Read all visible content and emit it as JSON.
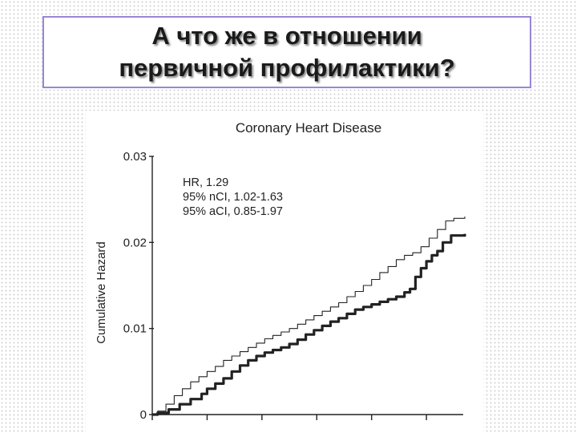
{
  "slide": {
    "title_line1": "А что же в отношении",
    "title_line2": "первичной профилактики?"
  },
  "colors": {
    "frame": "#9b86d6",
    "ink": "#222222"
  },
  "chart_data": {
    "type": "line",
    "title": "Coronary Heart Disease",
    "ylabel": "Cumulative Hazard",
    "xlabel": "",
    "ylim": [
      0,
      0.03
    ],
    "xlim": [
      0,
      5.7
    ],
    "yticks": [
      {
        "value": 0,
        "label": "0"
      },
      {
        "value": 0.01,
        "label": "0.01"
      },
      {
        "value": 0.02,
        "label": "0.02"
      },
      {
        "value": 0.03,
        "label": "0.03"
      }
    ],
    "xticks": [
      0,
      1,
      2,
      3,
      4,
      5
    ],
    "grid": false,
    "annotations": [
      "HR, 1.29",
      "95% nCI, 1.02-1.63",
      "95% aCI, 0.85-1.97"
    ],
    "series": [
      {
        "style": "thin",
        "points": [
          [
            0,
            0
          ],
          [
            0.1,
            0.0004
          ],
          [
            0.25,
            0.0012
          ],
          [
            0.4,
            0.0022
          ],
          [
            0.55,
            0.003
          ],
          [
            0.7,
            0.0038
          ],
          [
            0.85,
            0.0044
          ],
          [
            1.0,
            0.005
          ],
          [
            1.15,
            0.0056
          ],
          [
            1.3,
            0.0063
          ],
          [
            1.45,
            0.0068
          ],
          [
            1.6,
            0.0073
          ],
          [
            1.75,
            0.0078
          ],
          [
            1.9,
            0.0083
          ],
          [
            2.05,
            0.0088
          ],
          [
            2.2,
            0.0092
          ],
          [
            2.35,
            0.0096
          ],
          [
            2.5,
            0.01
          ],
          [
            2.65,
            0.0105
          ],
          [
            2.8,
            0.011
          ],
          [
            2.95,
            0.0115
          ],
          [
            3.1,
            0.012
          ],
          [
            3.25,
            0.0125
          ],
          [
            3.4,
            0.013
          ],
          [
            3.55,
            0.0137
          ],
          [
            3.7,
            0.0143
          ],
          [
            3.85,
            0.015
          ],
          [
            4.0,
            0.0157
          ],
          [
            4.15,
            0.0165
          ],
          [
            4.3,
            0.0172
          ],
          [
            4.45,
            0.018
          ],
          [
            4.6,
            0.0185
          ],
          [
            4.75,
            0.0188
          ],
          [
            4.9,
            0.0195
          ],
          [
            5.05,
            0.0205
          ],
          [
            5.2,
            0.0215
          ],
          [
            5.35,
            0.0225
          ],
          [
            5.5,
            0.0228
          ],
          [
            5.7,
            0.023
          ]
        ]
      },
      {
        "style": "thick",
        "points": [
          [
            0,
            0
          ],
          [
            0.1,
            0.0002
          ],
          [
            0.3,
            0.0006
          ],
          [
            0.5,
            0.0012
          ],
          [
            0.7,
            0.0018
          ],
          [
            0.9,
            0.0024
          ],
          [
            1.0,
            0.003
          ],
          [
            1.15,
            0.0036
          ],
          [
            1.3,
            0.0042
          ],
          [
            1.45,
            0.005
          ],
          [
            1.6,
            0.0057
          ],
          [
            1.75,
            0.0063
          ],
          [
            1.9,
            0.0068
          ],
          [
            2.05,
            0.0072
          ],
          [
            2.2,
            0.0075
          ],
          [
            2.35,
            0.0078
          ],
          [
            2.5,
            0.0082
          ],
          [
            2.65,
            0.0087
          ],
          [
            2.8,
            0.0093
          ],
          [
            2.95,
            0.0098
          ],
          [
            3.1,
            0.0103
          ],
          [
            3.25,
            0.0108
          ],
          [
            3.4,
            0.0112
          ],
          [
            3.55,
            0.0117
          ],
          [
            3.7,
            0.0122
          ],
          [
            3.85,
            0.0125
          ],
          [
            4.0,
            0.0128
          ],
          [
            4.15,
            0.0131
          ],
          [
            4.3,
            0.0134
          ],
          [
            4.45,
            0.0137
          ],
          [
            4.6,
            0.0142
          ],
          [
            4.7,
            0.0146
          ],
          [
            4.8,
            0.016
          ],
          [
            4.9,
            0.017
          ],
          [
            5.0,
            0.0178
          ],
          [
            5.1,
            0.0185
          ],
          [
            5.2,
            0.019
          ],
          [
            5.3,
            0.02
          ],
          [
            5.45,
            0.0208
          ],
          [
            5.7,
            0.021
          ]
        ]
      }
    ]
  }
}
